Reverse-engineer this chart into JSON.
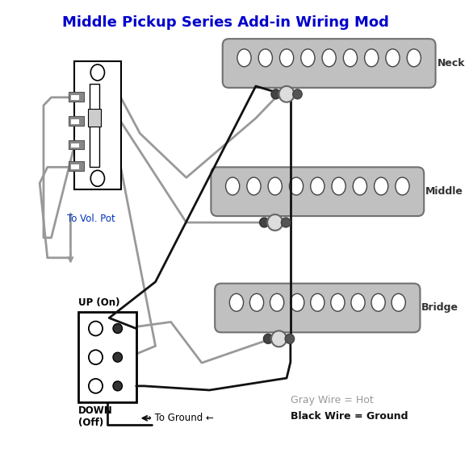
{
  "title": "Middle Pickup Series Add-in Wiring Mod",
  "title_color": "#0000CC",
  "title_fontsize": 13,
  "bg_color": "#ffffff",
  "pickup_color": "#c0c0c0",
  "pickup_edge_color": "#808080",
  "wire_gray": "#999999",
  "wire_black": "#111111",
  "wire_lw_gray": 2.0,
  "wire_lw_black": 2.0,
  "label_neck": "Neck",
  "label_middle": "Middle",
  "label_bridge": "Bridge",
  "label_vol": "To Vol. Pot",
  "label_up": "UP (On)",
  "label_down": "DOWN\n(Off)",
  "label_ground": "→ To Ground ←",
  "label_gray_wire": "Gray Wire = Hot",
  "label_black_wire": "Black Wire = Ground"
}
